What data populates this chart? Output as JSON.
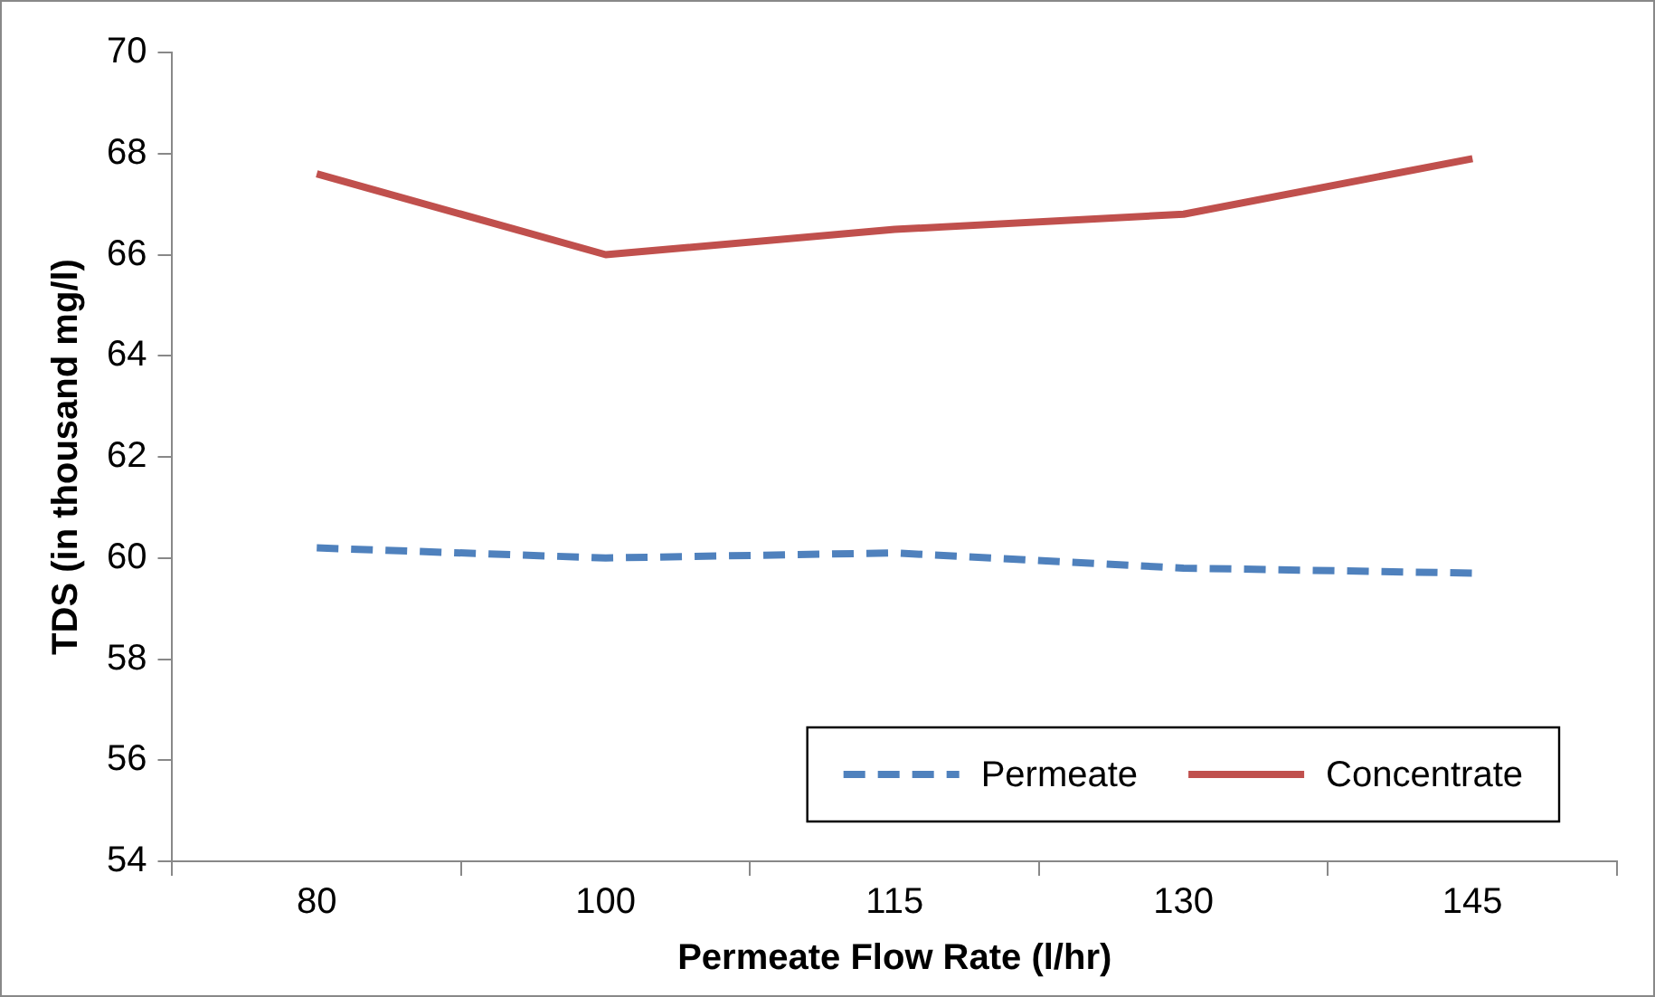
{
  "chart_data": {
    "type": "line",
    "xlabel": "Permeate Flow Rate (l/hr)",
    "ylabel": "TDS (in thousand mg/l)",
    "categories": [
      "80",
      "100",
      "115",
      "130",
      "145"
    ],
    "series": [
      {
        "name": "Permeate",
        "color": "#4f81bd",
        "line_style": "dashed",
        "values": [
          60.2,
          60.0,
          60.1,
          59.8,
          59.7
        ]
      },
      {
        "name": "Concentrate",
        "color": "#c0504d",
        "line_style": "solid",
        "values": [
          67.6,
          66.0,
          66.5,
          66.8,
          67.9
        ]
      }
    ],
    "ylim": [
      54,
      70
    ],
    "yticks": [
      54,
      56,
      58,
      60,
      62,
      64,
      66,
      68,
      70
    ],
    "grid": false,
    "legend": "bottom right",
    "marker": "none"
  }
}
